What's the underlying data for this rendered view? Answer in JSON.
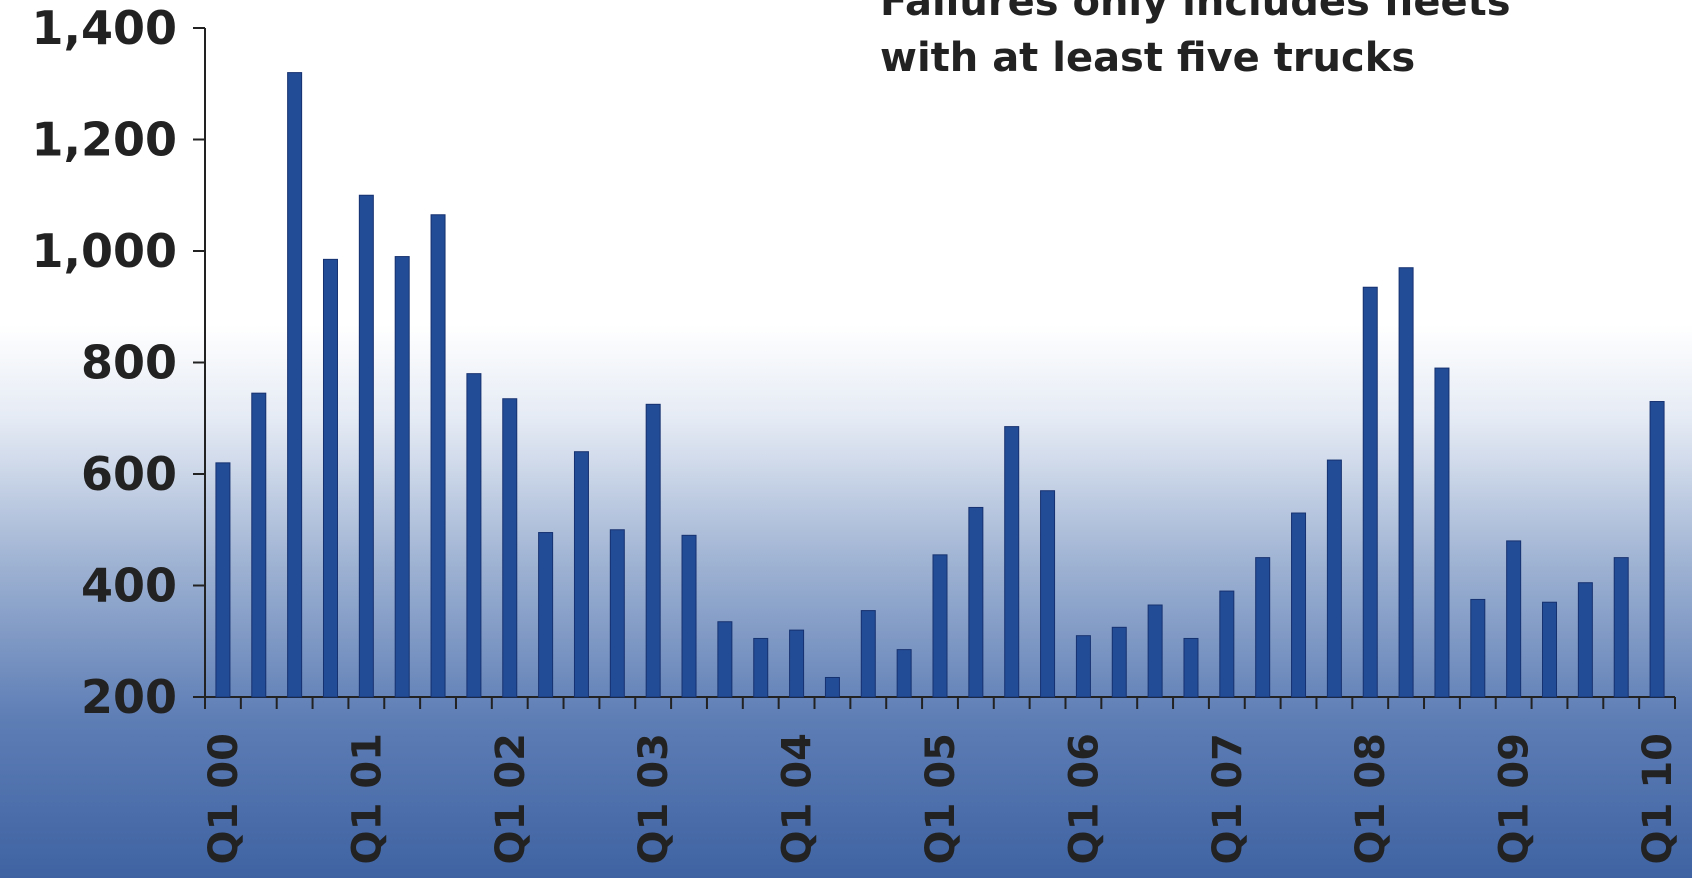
{
  "annotation": {
    "line1": "Failures only includes fleets",
    "line2": "with at least five trucks"
  },
  "colors": {
    "bar": "#234c96",
    "bar_edge": "#163170",
    "text": "#222222",
    "axis": "#222222"
  },
  "chart_data": {
    "type": "bar",
    "title": "",
    "xlabel": "",
    "ylabel": "",
    "ylim": [
      200,
      1400
    ],
    "yticks": [
      200,
      400,
      600,
      800,
      1000,
      1200,
      1400
    ],
    "ytick_labels": [
      "200",
      "400",
      "600",
      "800",
      "1,000",
      "1,200",
      "1,400"
    ],
    "xtick_labels": [
      "Q1 00",
      "Q1 01",
      "Q1 02",
      "Q1 03",
      "Q1 04",
      "Q1 05",
      "Q1 06",
      "Q1 07",
      "Q1 08",
      "Q1 09",
      "Q1 10"
    ],
    "xtick_label_every": 4,
    "grid": false,
    "values": [
      620,
      745,
      1320,
      985,
      1100,
      990,
      1065,
      780,
      735,
      495,
      640,
      500,
      725,
      490,
      335,
      305,
      320,
      235,
      355,
      285,
      455,
      540,
      685,
      570,
      310,
      325,
      365,
      305,
      390,
      450,
      530,
      625,
      935,
      970,
      790,
      375,
      480,
      370,
      405,
      450,
      730
    ]
  }
}
